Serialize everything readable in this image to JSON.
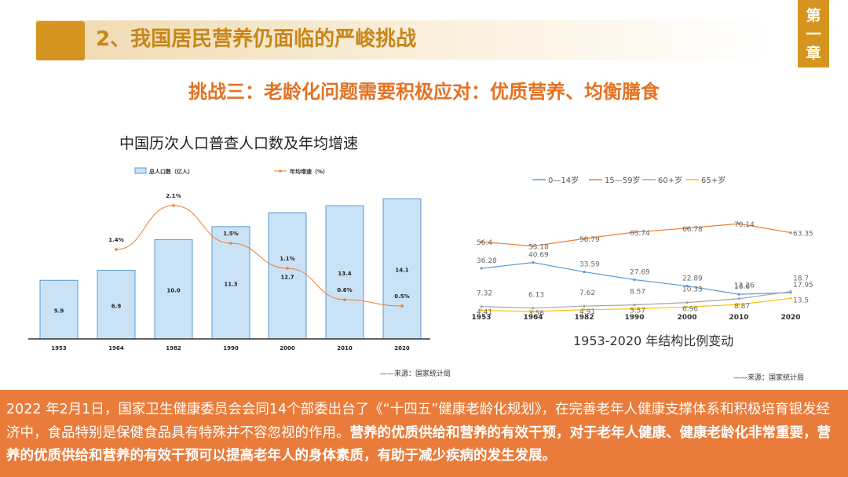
{
  "header": {
    "section_title": "2、我国居民营养仍面临的严峻挑战",
    "chapter_tab": "第一章",
    "subtitle": "挑战三：老龄化问题需要积极应对：优质营养、均衡膳食"
  },
  "colors": {
    "accent": "#D4941F",
    "orange": "#E37222",
    "bar_fill": "#C9E2F6",
    "bar_stroke": "#5B9BD5",
    "bottom_bg": "#EA7C3B"
  },
  "chart_data": [
    {
      "type": "bar",
      "title": "中国历次人口普查人口数及年均增速",
      "categories": [
        "1953",
        "1964",
        "1982",
        "1990",
        "2000",
        "2010",
        "2020"
      ],
      "series": [
        {
          "name": "总人口数（亿人）",
          "type": "bar",
          "values": [
            5.9,
            6.9,
            10.0,
            11.3,
            12.7,
            13.4,
            14.1
          ],
          "labels": [
            "5.9",
            "6.9",
            "10.0",
            "11.3",
            "12.7",
            "13.4",
            "14.1"
          ]
        },
        {
          "name": "年均增速（%）",
          "type": "line",
          "values": [
            1.4,
            2.1,
            1.5,
            1.1,
            0.6,
            0.5
          ],
          "x": [
            "1964",
            "1982",
            "1990",
            "2000",
            "2010",
            "2020"
          ],
          "labels": [
            "1.4%",
            "2.1%",
            "1.5%",
            "1.1%",
            "0.6%",
            "0.5%"
          ]
        }
      ],
      "source": "——来源：国家统计局"
    },
    {
      "type": "line",
      "title": "1953-2020 年结构比例变动",
      "x": [
        "1953",
        "1964",
        "1982",
        "1990",
        "2000",
        "2010",
        "2020"
      ],
      "series": [
        {
          "name": "0—14岁",
          "color": "#5B9BD5",
          "values": [
            36.28,
            40.69,
            33.59,
            27.69,
            22.89,
            16.6,
            17.95
          ],
          "labels": [
            "36.28",
            "40.69",
            "33.59",
            "27.69",
            "22.89",
            "16.6",
            "17.95"
          ]
        },
        {
          "name": "15—59岁",
          "color": "#ED7D31",
          "values": [
            56.4,
            53.18,
            58.79,
            63.74,
            66.78,
            70.14,
            63.35
          ],
          "labels": [
            "56.4",
            "53.18",
            "58.79",
            "63.74",
            "66.78",
            "70.14",
            "63.35"
          ]
        },
        {
          "name": "60+岁",
          "color": "#A5A5A5",
          "values": [
            7.32,
            6.13,
            7.62,
            8.57,
            10.33,
            13.26,
            18.7
          ],
          "labels": [
            "7.32",
            "6.13",
            "7.62",
            "8.57",
            "10.33",
            "13.26",
            "18.7"
          ]
        },
        {
          "name": "65+岁",
          "color": "#FFC000",
          "values": [
            4.41,
            3.56,
            4.91,
            5.57,
            6.96,
            8.87,
            13.5
          ],
          "labels": [
            "4.41",
            "3.56",
            "4.91",
            "5.57",
            "6.96",
            "8.87",
            "13.5"
          ]
        }
      ],
      "source": "——来源：国家统计局"
    }
  ],
  "bottom": {
    "text_normal": "2022 年2月1日，国家卫生健康委员会会同14个部委出台了《“十四五”健康老龄化规划》，在完善老年人健康支撑体系和积极培育银发经济中，食品特别是保健食品具有特殊并不容忽视的作用。",
    "text_bold": "营养的优质供给和营养的有效干预，对于老年人健康、健康老龄化非常重要，营养的优质供给和营养的有效干预可以提高老年人的身体素质，有助于减少疾病的发生发展。"
  }
}
